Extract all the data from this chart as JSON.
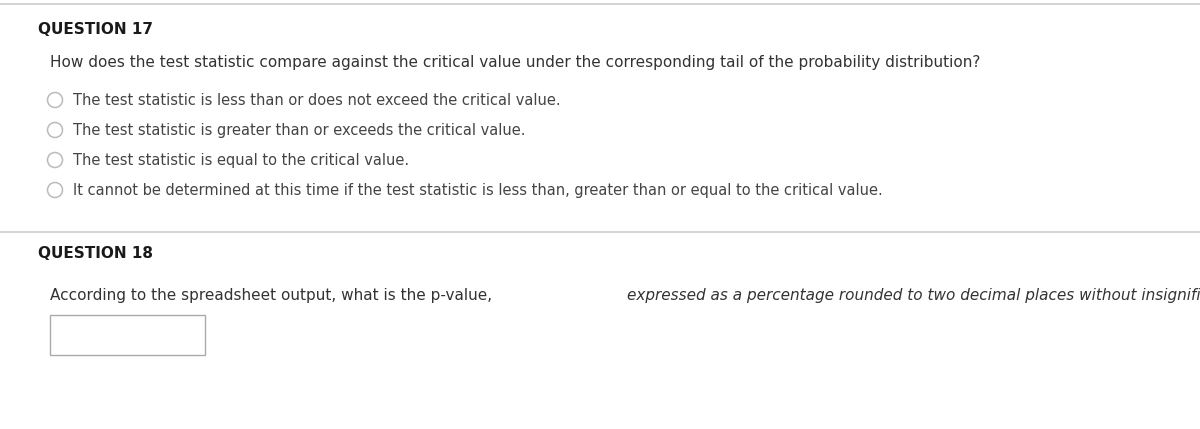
{
  "bg_color": "#ffffff",
  "content_bg": "#ffffff",
  "top_line_color": "#cccccc",
  "divider_color": "#cccccc",
  "q17_label": "QUESTION 17",
  "q17_question": "How does the test statistic compare against the critical value under the corresponding tail of the probability distribution?",
  "q17_options": [
    "The test statistic is less than or does not exceed the critical value.",
    "The test statistic is greater than or exceeds the critical value.",
    "The test statistic is equal to the critical value.",
    "It cannot be determined at this time if the test statistic is less than, greater than or equal to the critical value."
  ],
  "q18_label": "QUESTION 18",
  "q18_question_normal": "According to the spreadsheet output, what is the p-value, ",
  "q18_question_italic": "expressed as a percentage rounded to two decimal places without insignificant digits",
  "q18_question_end": "?",
  "label_fontsize": 11,
  "question_fontsize": 11,
  "option_fontsize": 10.5,
  "label_color": "#1a1a1a",
  "question_color": "#333333",
  "option_color": "#444444",
  "circle_color": "#bbbbbb",
  "input_box_color": "#ffffff",
  "input_box_edge_color": "#aaaaaa"
}
